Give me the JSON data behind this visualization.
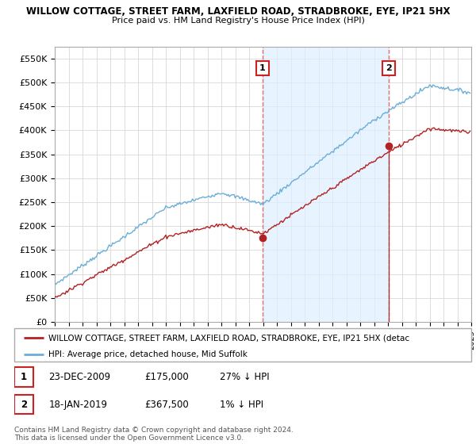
{
  "title1": "WILLOW COTTAGE, STREET FARM, LAXFIELD ROAD, STRADBROKE, EYE, IP21 5HX",
  "title2": "Price paid vs. HM Land Registry's House Price Index (HPI)",
  "ylabel_ticks": [
    "£0",
    "£50K",
    "£100K",
    "£150K",
    "£200K",
    "£250K",
    "£300K",
    "£350K",
    "£400K",
    "£450K",
    "£500K",
    "£550K"
  ],
  "ytick_values": [
    0,
    50000,
    100000,
    150000,
    200000,
    250000,
    300000,
    350000,
    400000,
    450000,
    500000,
    550000
  ],
  "ylim": [
    0,
    575000
  ],
  "xlim": [
    1995,
    2025
  ],
  "hpi_color": "#6baed6",
  "price_color": "#b22222",
  "vline_color": "#e87070",
  "shade_color": "#ddeeff",
  "sale1_x": 2009.97,
  "sale1_value": 175000,
  "sale2_x": 2019.05,
  "sale2_value": 367500,
  "legend_line1": "WILLOW COTTAGE, STREET FARM, LAXFIELD ROAD, STRADBROKE, EYE, IP21 5HX (detac",
  "legend_line2": "HPI: Average price, detached house, Mid Suffolk",
  "table_row1_num": "1",
  "table_row1_date": "23-DEC-2009",
  "table_row1_price": "£175,000",
  "table_row1_hpi": "27% ↓ HPI",
  "table_row2_num": "2",
  "table_row2_date": "18-JAN-2019",
  "table_row2_price": "£367,500",
  "table_row2_hpi": "1% ↓ HPI",
  "footer": "Contains HM Land Registry data © Crown copyright and database right 2024.\nThis data is licensed under the Open Government Licence v3.0.",
  "background_color": "#ffffff",
  "grid_color": "#d8d8d8"
}
